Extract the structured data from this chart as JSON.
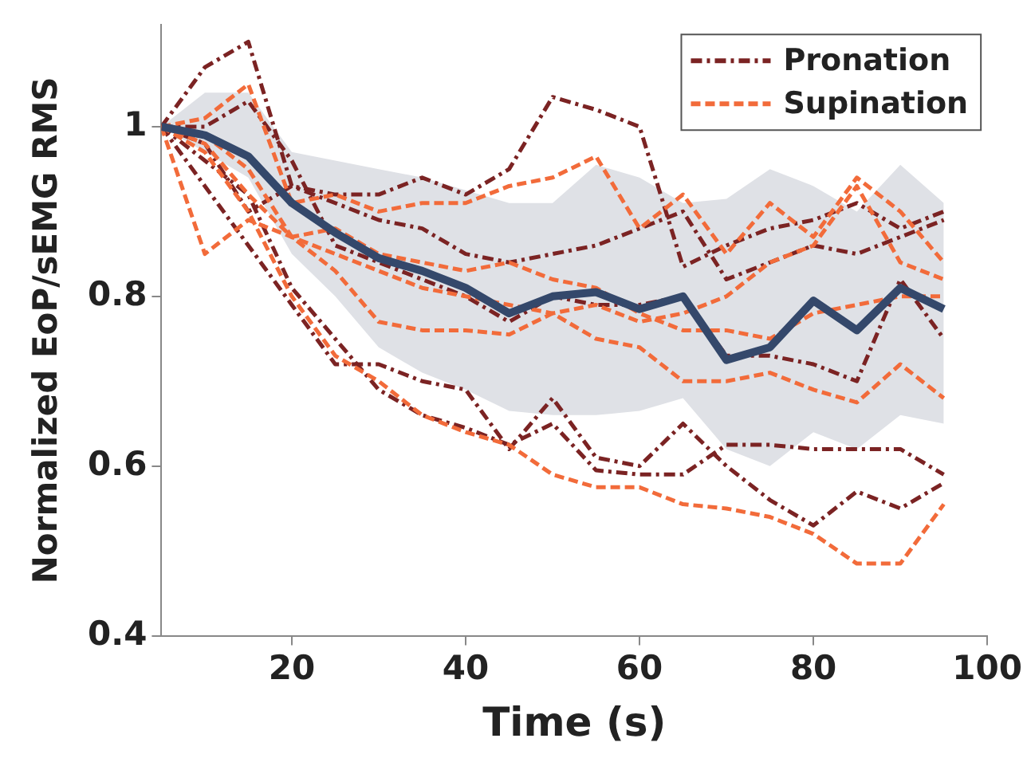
{
  "chart_data": {
    "type": "line",
    "xlabel": "Time (s)",
    "ylabel": "Normalized EoP/sEMG RMS",
    "x": [
      5,
      10,
      15,
      20,
      25,
      30,
      35,
      40,
      45,
      50,
      55,
      60,
      65,
      70,
      75,
      80,
      85,
      90,
      95
    ],
    "xlim": [
      5,
      100
    ],
    "xticks": [
      20,
      40,
      60,
      80,
      100
    ],
    "ylim": [
      0.4,
      1.12
    ],
    "yticks": [
      0.4,
      0.6,
      0.8,
      1
    ],
    "grid": false,
    "legend": "top right",
    "marker": "none",
    "series": [
      {
        "name": "Pronation",
        "color": "#7b2323",
        "line_style": "dashdot",
        "values": [
          1.0,
          1.07,
          1.1,
          0.93,
          0.92,
          0.92,
          0.94,
          0.92,
          0.95,
          1.035,
          1.02,
          1.0,
          0.835,
          0.86,
          0.88,
          0.89,
          0.91,
          0.88,
          0.9
        ]
      },
      {
        "color": "#7b2323",
        "line_style": "dashdot",
        "values": [
          1.0,
          0.98,
          0.9,
          0.93,
          0.91,
          0.89,
          0.88,
          0.85,
          0.84,
          0.85,
          0.86,
          0.88,
          0.9,
          0.82,
          0.84,
          0.86,
          0.85,
          0.87,
          0.89
        ]
      },
      {
        "color": "#7b2323",
        "line_style": "dashdot",
        "values": [
          1.0,
          1.0,
          1.03,
          0.96,
          0.86,
          0.84,
          0.82,
          0.8,
          0.77,
          0.8,
          0.79,
          0.79,
          0.8,
          0.73,
          0.73,
          0.72,
          0.7,
          0.82,
          0.75
        ]
      },
      {
        "color": "#7b2323",
        "line_style": "dashdot",
        "values": [
          1.0,
          0.93,
          0.86,
          0.79,
          0.72,
          0.72,
          0.7,
          0.69,
          0.62,
          0.68,
          0.61,
          0.6,
          0.65,
          0.6,
          0.56,
          0.53,
          0.57,
          0.55,
          0.58
        ]
      },
      {
        "color": "#7b2323",
        "line_style": "dashdot",
        "values": [
          1.0,
          0.96,
          0.92,
          0.81,
          0.75,
          0.69,
          0.66,
          0.645,
          0.625,
          0.65,
          0.595,
          0.59,
          0.59,
          0.625,
          0.625,
          0.62,
          0.62,
          0.62,
          0.59
        ]
      },
      {
        "name": "Supination",
        "color": "#f26b3a",
        "line_style": "dashed",
        "values": [
          1.0,
          1.01,
          1.05,
          0.91,
          0.92,
          0.9,
          0.91,
          0.91,
          0.93,
          0.94,
          0.965,
          0.88,
          0.92,
          0.85,
          0.91,
          0.87,
          0.94,
          0.9,
          0.84
        ]
      },
      {
        "color": "#f26b3a",
        "line_style": "dashed",
        "values": [
          1.0,
          0.85,
          0.89,
          0.87,
          0.85,
          0.83,
          0.81,
          0.8,
          0.79,
          0.78,
          0.79,
          0.77,
          0.78,
          0.8,
          0.84,
          0.86,
          0.93,
          0.84,
          0.82
        ]
      },
      {
        "color": "#f26b3a",
        "line_style": "dashed",
        "values": [
          1.0,
          0.99,
          0.95,
          0.87,
          0.83,
          0.77,
          0.76,
          0.76,
          0.755,
          0.78,
          0.75,
          0.74,
          0.7,
          0.7,
          0.71,
          0.69,
          0.675,
          0.72,
          0.68
        ]
      },
      {
        "color": "#f26b3a",
        "line_style": "dashed",
        "values": [
          1.0,
          0.97,
          0.9,
          0.8,
          0.73,
          0.7,
          0.66,
          0.64,
          0.625,
          0.59,
          0.575,
          0.575,
          0.555,
          0.55,
          0.54,
          0.52,
          0.485,
          0.485,
          0.555
        ]
      },
      {
        "color": "#f26b3a",
        "line_style": "dashed",
        "values": [
          1.0,
          0.98,
          0.92,
          0.87,
          0.88,
          0.85,
          0.84,
          0.83,
          0.84,
          0.82,
          0.81,
          0.78,
          0.76,
          0.76,
          0.75,
          0.78,
          0.79,
          0.8,
          0.8
        ]
      },
      {
        "color": "#34486b",
        "line_style": "solid",
        "values": [
          1.0,
          0.99,
          0.965,
          0.91,
          0.875,
          0.845,
          0.83,
          0.81,
          0.78,
          0.8,
          0.805,
          0.785,
          0.8,
          0.725,
          0.74,
          0.795,
          0.76,
          0.81,
          0.785
        ],
        "lower": [
          1.0,
          0.97,
          0.94,
          0.85,
          0.8,
          0.74,
          0.71,
          0.69,
          0.665,
          0.66,
          0.66,
          0.665,
          0.68,
          0.62,
          0.6,
          0.64,
          0.62,
          0.66,
          0.65
        ],
        "upper": [
          1.0,
          1.04,
          1.04,
          0.97,
          0.96,
          0.95,
          0.94,
          0.925,
          0.91,
          0.91,
          0.955,
          0.94,
          0.91,
          0.915,
          0.95,
          0.93,
          0.9,
          0.955,
          0.91
        ]
      }
    ]
  }
}
